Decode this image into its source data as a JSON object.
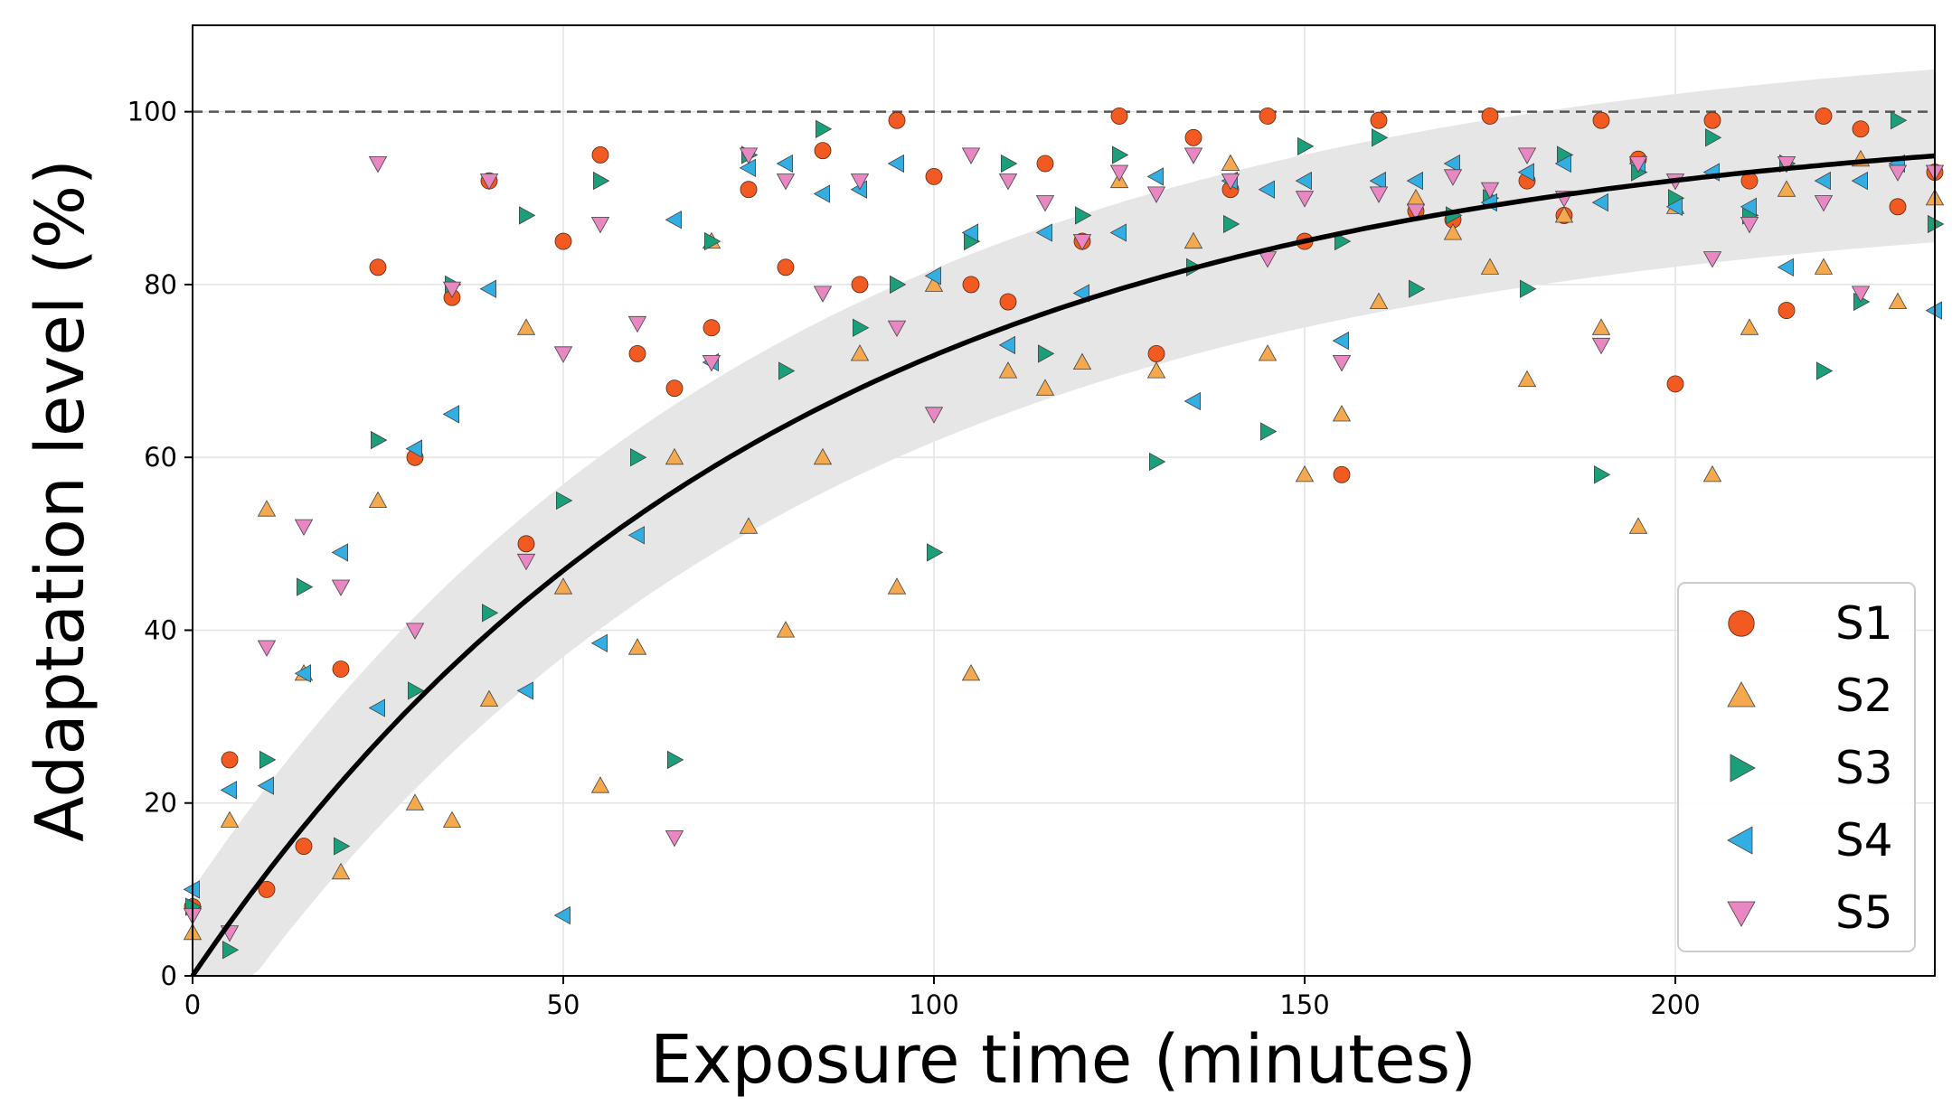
{
  "chart_data": {
    "type": "scatter",
    "title": "",
    "xlabel": "Exposure time (minutes)",
    "ylabel": "Adaptation level (%)",
    "xlim": [
      0,
      235
    ],
    "ylim": [
      0,
      100
    ],
    "ylim_display": [
      0,
      110
    ],
    "xticks": [
      "0",
      "50",
      "100",
      "150",
      "200"
    ],
    "yticks": [
      "0",
      "20",
      "40",
      "60",
      "80",
      "100"
    ],
    "grid": true,
    "legend_position": "lower-right",
    "reference_line": {
      "y": 100,
      "style": "dashed"
    },
    "fit_curve": {
      "model": "100*(1-exp(-t/tau))",
      "tau": 79,
      "band_halfwidth": 10
    },
    "series": [
      {
        "name": "S1",
        "marker": "circle",
        "color": "#f25a22",
        "x": [
          0,
          5,
          10,
          15,
          20,
          25,
          30,
          35,
          40,
          45,
          50,
          55,
          60,
          65,
          70,
          75,
          80,
          85,
          90,
          95,
          100,
          105,
          110,
          115,
          120,
          125,
          130,
          135,
          140,
          145,
          150,
          155,
          160,
          165,
          170,
          175,
          180,
          185,
          190,
          195,
          200,
          205,
          210,
          215,
          220,
          225,
          230,
          235
        ],
        "y": [
          8,
          25,
          10,
          15,
          35.5,
          82,
          60,
          78.5,
          92,
          50,
          85,
          95,
          72,
          68,
          75,
          91,
          82,
          95.5,
          80,
          99,
          92.5,
          80,
          78,
          94,
          85,
          99.5,
          72,
          97,
          91,
          99.5,
          85,
          58,
          99,
          88.5,
          87.5,
          99.5,
          92,
          88,
          99,
          94.5,
          68.5,
          99,
          92,
          77,
          99.5,
          98,
          89,
          93
        ]
      },
      {
        "name": "S2",
        "marker": "triangle-up",
        "color": "#f5a94e",
        "x": [
          0,
          5,
          10,
          15,
          20,
          25,
          30,
          35,
          40,
          45,
          50,
          55,
          60,
          65,
          70,
          75,
          80,
          85,
          90,
          95,
          100,
          105,
          110,
          115,
          120,
          125,
          130,
          135,
          140,
          145,
          150,
          155,
          160,
          165,
          170,
          175,
          180,
          185,
          190,
          195,
          200,
          205,
          210,
          215,
          220,
          225,
          230,
          235
        ],
        "y": [
          5,
          18,
          54,
          35,
          12,
          55,
          20,
          18,
          32,
          75,
          45,
          22,
          38,
          60,
          85,
          52,
          40,
          60,
          72,
          45,
          80,
          35,
          70,
          68,
          71,
          92,
          70,
          85,
          94,
          72,
          58,
          65,
          78,
          90,
          86,
          82,
          69,
          88,
          75,
          52,
          89,
          58,
          75,
          91,
          82,
          94.5,
          78,
          90
        ]
      },
      {
        "name": "S3",
        "marker": "triangle-right",
        "color": "#1a9f7a",
        "x": [
          0,
          5,
          10,
          15,
          20,
          25,
          30,
          35,
          40,
          45,
          50,
          55,
          60,
          65,
          70,
          75,
          80,
          85,
          90,
          95,
          100,
          105,
          110,
          115,
          120,
          125,
          130,
          135,
          140,
          145,
          150,
          155,
          160,
          165,
          170,
          175,
          180,
          185,
          190,
          195,
          200,
          205,
          210,
          215,
          220,
          225,
          230,
          235
        ],
        "y": [
          8,
          3,
          25,
          45,
          15,
          62,
          33,
          80,
          42,
          88,
          55,
          92,
          60,
          25,
          85,
          95,
          70,
          98,
          75,
          80,
          49,
          85,
          94,
          72,
          88,
          95,
          59.5,
          82,
          87,
          63,
          96,
          85,
          97,
          79.5,
          88,
          90,
          79.5,
          95,
          58,
          93,
          90,
          97,
          88,
          94,
          70,
          78,
          99,
          87
        ]
      },
      {
        "name": "S4",
        "marker": "triangle-left",
        "color": "#33aee3",
        "x": [
          0,
          5,
          10,
          15,
          20,
          25,
          30,
          35,
          40,
          45,
          50,
          55,
          60,
          65,
          70,
          75,
          80,
          85,
          90,
          95,
          100,
          105,
          110,
          115,
          120,
          125,
          130,
          135,
          140,
          145,
          150,
          155,
          160,
          165,
          170,
          175,
          180,
          185,
          190,
          195,
          200,
          205,
          210,
          215,
          220,
          225,
          230,
          235
        ],
        "y": [
          10,
          21.5,
          22,
          35,
          49,
          31,
          61,
          65,
          79.5,
          33,
          7,
          38.5,
          51,
          87.5,
          71,
          93.5,
          94,
          90.5,
          91,
          94,
          81,
          86,
          73,
          86,
          79,
          86,
          92.5,
          66.5,
          92,
          91,
          92,
          73.5,
          92,
          92,
          94,
          89.5,
          93,
          94,
          89.5,
          94,
          89,
          93,
          89,
          82,
          92,
          92,
          94,
          77
        ]
      },
      {
        "name": "S5",
        "marker": "triangle-down",
        "color": "#e987c2",
        "x": [
          0,
          5,
          10,
          15,
          20,
          25,
          30,
          35,
          40,
          45,
          50,
          55,
          60,
          65,
          70,
          75,
          80,
          85,
          90,
          95,
          100,
          105,
          110,
          115,
          120,
          125,
          130,
          135,
          140,
          145,
          150,
          155,
          160,
          165,
          170,
          175,
          180,
          185,
          190,
          195,
          200,
          205,
          210,
          215,
          220,
          225,
          230,
          235
        ],
        "y": [
          7,
          5,
          38,
          52,
          45,
          94,
          40,
          79.5,
          92,
          48,
          72,
          87,
          75.5,
          16,
          71,
          95,
          92,
          79,
          92,
          75,
          65,
          95,
          92,
          89.5,
          85,
          93,
          90.5,
          95,
          92,
          83,
          90,
          71,
          90.5,
          88.5,
          92.5,
          91,
          95,
          90,
          73,
          94,
          92,
          83,
          87,
          94,
          89.5,
          79,
          93,
          93
        ]
      }
    ]
  }
}
